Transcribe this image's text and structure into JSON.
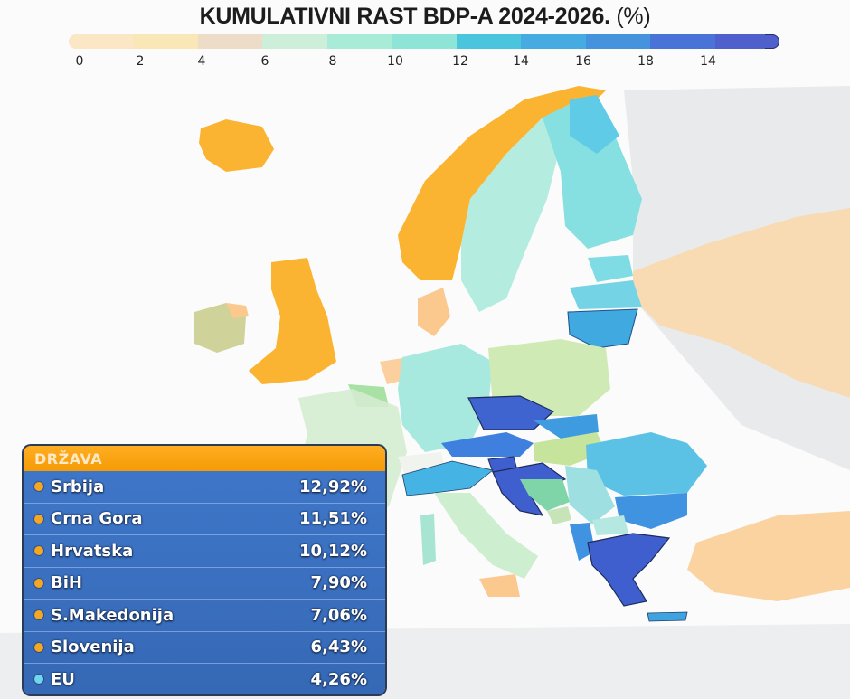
{
  "title": {
    "main": "KUMULATIVNI RAST BDP-A 2024-2026.",
    "unit": "(%)"
  },
  "legend": {
    "ticks": [
      "0",
      "2",
      "4",
      "6",
      "8",
      "10",
      "12",
      "14",
      "16",
      "18",
      "14"
    ],
    "colors": [
      "#fbe7c6",
      "#f9e7b8",
      "#ecdcc8",
      "#cdeed9",
      "#a8ecd8",
      "#8ee4d6",
      "#4bc4dd",
      "#45abe0",
      "#4592dd",
      "#4a73d8",
      "#4f5fcc"
    ]
  },
  "table": {
    "header": "DRŽAVA",
    "rows": [
      {
        "country": "Srbija",
        "value": "12,92%",
        "dot_color": "#f5a623"
      },
      {
        "country": "Crna Gora",
        "value": "11,51%",
        "dot_color": "#f5a623"
      },
      {
        "country": "Hrvatska",
        "value": "10,12%",
        "dot_color": "#f5a623"
      },
      {
        "country": "BiH",
        "value": "7,90%",
        "dot_color": "#f5a623"
      },
      {
        "country": "S.Makedonija",
        "value": "7,06%",
        "dot_color": "#f5a623"
      },
      {
        "country": "Slovenija",
        "value": "6,43%",
        "dot_color": "#f5a623"
      },
      {
        "country": "EU",
        "value": "4,26%",
        "dot_color": "#6fd6ee"
      }
    ]
  },
  "map_colors": {
    "orange": "#fbb431",
    "light_orange": "#fbd3a0",
    "mint": "#a6eadc",
    "cyan": "#5dc8e4",
    "blue": "#3f8fe0",
    "dark_blue": "#3e63cf",
    "lime": "#c8e89a",
    "grey": "#e6e8ea"
  },
  "chart_data": {
    "type": "table",
    "title": "KUMULATIVNI RAST BDP-A 2024-2026. (%)",
    "categories": [
      "Srbija",
      "Crna Gora",
      "Hrvatska",
      "BiH",
      "S.Makedonija",
      "Slovenija",
      "EU"
    ],
    "values": [
      12.92,
      11.51,
      10.12,
      7.9,
      7.06,
      6.43,
      4.26
    ],
    "column_header": "DRŽAVA",
    "color_scale": {
      "ticks": [
        0,
        2,
        4,
        6,
        8,
        10,
        12,
        14,
        16,
        18,
        14
      ],
      "from": "#fbe7c6",
      "to": "#4f5fcc"
    },
    "map_type": "choropleth of Europe"
  }
}
